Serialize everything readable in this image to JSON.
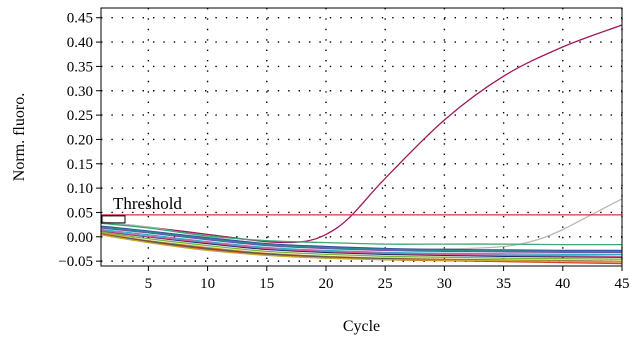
{
  "chart_data": {
    "type": "line",
    "xlabel": "Cycle",
    "ylabel": "Norm. fluoro.",
    "xlim": [
      1,
      45
    ],
    "ylim": [
      -0.06,
      0.47
    ],
    "xticks": [
      5,
      10,
      15,
      20,
      25,
      30,
      35,
      40,
      45
    ],
    "yticks": [
      -0.05,
      0.0,
      0.05,
      0.1,
      0.15,
      0.2,
      0.25,
      0.3,
      0.35,
      0.4,
      0.45
    ],
    "ytick_labels": [
      "−0.05",
      "0.00",
      "0.05",
      "0.10",
      "0.15",
      "0.20",
      "0.25",
      "0.30",
      "0.35",
      "0.40",
      "0.45"
    ],
    "grid": true,
    "legend": "none",
    "threshold": {
      "label": "Threshold",
      "value": 0.045,
      "color": "#e0303a"
    },
    "series": [
      {
        "color": "#a0185a",
        "x": [
          1,
          5,
          10,
          15,
          18,
          20,
          22,
          25,
          30,
          35,
          40,
          45
        ],
        "y": [
          0.03,
          0.02,
          0.005,
          -0.01,
          -0.01,
          0.005,
          0.04,
          0.12,
          0.24,
          0.33,
          0.39,
          0.435
        ]
      },
      {
        "color": "#b8b8b8",
        "x": [
          1,
          5,
          10,
          15,
          20,
          25,
          30,
          35,
          38,
          40,
          42,
          45
        ],
        "y": [
          0.03,
          0.02,
          0.0,
          -0.015,
          -0.02,
          -0.025,
          -0.025,
          -0.02,
          -0.005,
          0.015,
          0.04,
          0.078
        ]
      },
      {
        "color": "#3aa870",
        "x": [
          1,
          5,
          10,
          15,
          20,
          25,
          30,
          35,
          40,
          45
        ],
        "y": [
          0.028,
          0.018,
          0.002,
          -0.008,
          -0.012,
          -0.015,
          -0.015,
          -0.015,
          -0.016,
          -0.016
        ]
      },
      {
        "color": "#3b4fa8",
        "x": [
          1,
          5,
          10,
          15,
          20,
          25,
          30,
          35,
          40,
          45
        ],
        "y": [
          0.022,
          0.012,
          -0.002,
          -0.014,
          -0.02,
          -0.024,
          -0.026,
          -0.027,
          -0.028,
          -0.028
        ]
      },
      {
        "color": "#7a4ea8",
        "x": [
          1,
          5,
          10,
          15,
          20,
          25,
          30,
          35,
          40,
          45
        ],
        "y": [
          0.018,
          0.008,
          -0.006,
          -0.018,
          -0.024,
          -0.028,
          -0.03,
          -0.031,
          -0.032,
          -0.032
        ]
      },
      {
        "color": "#2ab0c8",
        "x": [
          1,
          5,
          10,
          15,
          20,
          25,
          30,
          35,
          40,
          45
        ],
        "y": [
          0.015,
          0.004,
          -0.01,
          -0.022,
          -0.028,
          -0.032,
          -0.034,
          -0.035,
          -0.036,
          -0.036
        ]
      },
      {
        "color": "#1a2a70",
        "x": [
          1,
          5,
          10,
          15,
          20,
          25,
          30,
          35,
          40,
          45
        ],
        "y": [
          0.012,
          0.0,
          -0.014,
          -0.026,
          -0.032,
          -0.036,
          -0.038,
          -0.04,
          -0.041,
          -0.042
        ]
      },
      {
        "color": "#7ab83a",
        "x": [
          1,
          5,
          10,
          15,
          20,
          25,
          30,
          35,
          40,
          45
        ],
        "y": [
          0.01,
          -0.004,
          -0.018,
          -0.03,
          -0.036,
          -0.04,
          -0.042,
          -0.044,
          -0.045,
          -0.046
        ]
      },
      {
        "color": "#e08a2a",
        "x": [
          1,
          5,
          10,
          15,
          20,
          25,
          30,
          35,
          40,
          45
        ],
        "y": [
          0.008,
          -0.008,
          -0.022,
          -0.034,
          -0.04,
          -0.044,
          -0.046,
          -0.048,
          -0.05,
          -0.052
        ]
      },
      {
        "color": "#d8402a",
        "x": [
          1,
          5,
          10,
          15,
          20,
          25,
          30,
          35,
          40,
          45
        ],
        "y": [
          0.006,
          -0.01,
          -0.026,
          -0.037,
          -0.043,
          -0.047,
          -0.049,
          -0.051,
          -0.053,
          -0.055
        ]
      },
      {
        "color": "#5a5a5a",
        "x": [
          1,
          5,
          10,
          15,
          20,
          25,
          30,
          35,
          40,
          45
        ],
        "y": [
          0.005,
          -0.009,
          -0.024,
          -0.035,
          -0.041,
          -0.045,
          -0.047,
          -0.048,
          -0.049,
          -0.05
        ]
      },
      {
        "color": "#2a8a8a",
        "x": [
          1,
          5,
          10,
          15,
          20,
          25,
          30,
          35,
          40,
          45
        ],
        "y": [
          0.02,
          0.01,
          -0.004,
          -0.016,
          -0.022,
          -0.026,
          -0.028,
          -0.029,
          -0.03,
          -0.03
        ]
      },
      {
        "color": "#c8a82a",
        "x": [
          1,
          5,
          10,
          15,
          20,
          25,
          30,
          35,
          40,
          45
        ],
        "y": [
          0.004,
          -0.012,
          -0.028,
          -0.038,
          -0.044,
          -0.047,
          -0.048,
          -0.049,
          -0.05,
          -0.05
        ]
      },
      {
        "color": "#d85a9a",
        "x": [
          1,
          5,
          10,
          15,
          20,
          25,
          30,
          35,
          40,
          45
        ],
        "y": [
          0.013,
          0.001,
          -0.012,
          -0.024,
          -0.03,
          -0.034,
          -0.036,
          -0.038,
          -0.039,
          -0.04
        ]
      }
    ]
  }
}
